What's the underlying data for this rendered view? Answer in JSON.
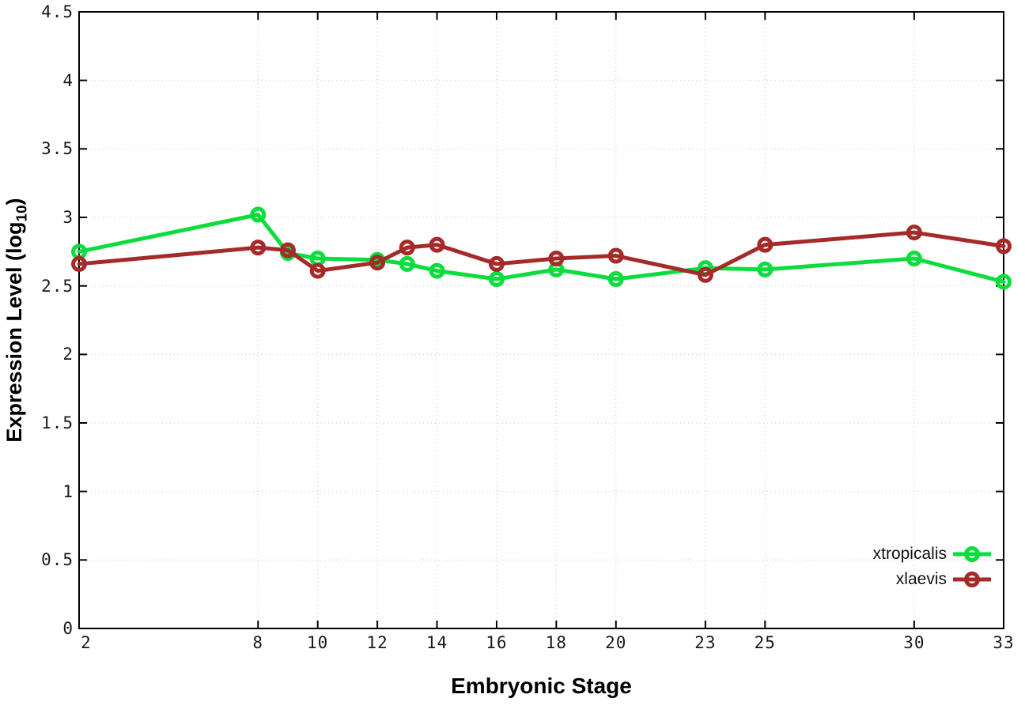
{
  "chart_data": {
    "type": "line",
    "title": "",
    "xlabel": "Embryonic Stage",
    "ylabel": "Expression Level (log10)",
    "ylabel_parts": {
      "prefix": "Expression Level (log",
      "sub": "10",
      "suffix": ")"
    },
    "x": [
      2,
      8,
      9,
      10,
      12,
      13,
      14,
      16,
      18,
      20,
      23,
      25,
      30,
      33
    ],
    "series": [
      {
        "name": "xtropicalis",
        "color": "#0bdd3c",
        "marker": "open-circle",
        "values": [
          2.75,
          3.02,
          2.74,
          2.7,
          2.69,
          2.66,
          2.61,
          2.55,
          2.62,
          2.55,
          2.63,
          2.62,
          2.7,
          2.53
        ]
      },
      {
        "name": "xlaevis",
        "color": "#a42b29",
        "marker": "open-circle",
        "values": [
          2.66,
          2.78,
          2.76,
          2.61,
          2.67,
          2.78,
          2.8,
          2.66,
          2.7,
          2.72,
          2.58,
          2.8,
          2.89,
          2.79
        ]
      }
    ],
    "xlim": [
      2,
      33
    ],
    "ylim": [
      0,
      4.5
    ],
    "xticks": {
      "values": [
        2,
        8,
        10,
        12,
        14,
        16,
        18,
        20,
        23,
        25,
        30,
        33
      ],
      "labels": [
        "2",
        "8",
        "10",
        "12",
        "14",
        "16",
        "18",
        "20",
        "23",
        "25",
        "30",
        "33"
      ]
    },
    "yticks": {
      "values": [
        0,
        0.5,
        1,
        1.5,
        2,
        2.5,
        3,
        3.5,
        4,
        4.5
      ],
      "labels": [
        "0",
        "0.5",
        "1",
        "1.5",
        "2",
        "2.5",
        "3",
        "3.5",
        "4",
        "4.5"
      ]
    },
    "grid": true,
    "grid_style": "dotted",
    "legend_position": "inside-bottom-right",
    "colors": {
      "border": "#000000",
      "grid": "#c2c2c2",
      "tick_text": "#1a1a1a",
      "background": "#ffffff"
    }
  }
}
